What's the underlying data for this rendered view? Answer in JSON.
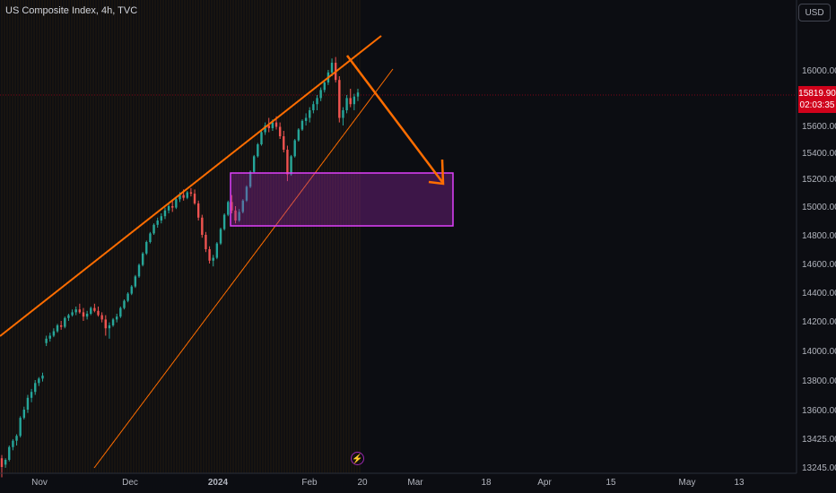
{
  "chart_data": {
    "type": "candlestick",
    "title": "US Composite Index, 4h, TVC",
    "currency": "USD",
    "last_price": "15819.90",
    "countdown": "02:03:35",
    "y_ticks": [
      "16000.00",
      "15800.00",
      "15600.00",
      "15400.00",
      "15200.00",
      "15000.00",
      "14800.00",
      "14600.00",
      "14400.00",
      "14200.00",
      "14000.00",
      "13800.00",
      "13600.00",
      "13425.00",
      "13245.00"
    ],
    "x_ticks": [
      "Nov",
      "Dec",
      "2024",
      "Feb",
      "20",
      "Mar",
      "18",
      "Apr",
      "15",
      "May",
      "13"
    ],
    "ohlc": [
      [
        13300,
        13320,
        13180,
        13245
      ],
      [
        13260,
        13300,
        13240,
        13290
      ],
      [
        13290,
        13380,
        13280,
        13370
      ],
      [
        13370,
        13420,
        13350,
        13410
      ],
      [
        13410,
        13450,
        13380,
        13440
      ],
      [
        13440,
        13560,
        13430,
        13550
      ],
      [
        13550,
        13620,
        13540,
        13600
      ],
      [
        13600,
        13700,
        13580,
        13680
      ],
      [
        13680,
        13740,
        13650,
        13720
      ],
      [
        13720,
        13800,
        13700,
        13780
      ],
      [
        13780,
        13820,
        13760,
        13810
      ],
      [
        13810,
        13850,
        13790,
        13830
      ],
      [
        14050,
        14100,
        14030,
        14080
      ],
      [
        14080,
        14120,
        14060,
        14100
      ],
      [
        14100,
        14150,
        14090,
        14130
      ],
      [
        14130,
        14180,
        14120,
        14170
      ],
      [
        14170,
        14200,
        14140,
        14160
      ],
      [
        14160,
        14230,
        14150,
        14220
      ],
      [
        14220,
        14250,
        14200,
        14240
      ],
      [
        14240,
        14280,
        14230,
        14260
      ],
      [
        14260,
        14300,
        14240,
        14280
      ],
      [
        14280,
        14320,
        14250,
        14260
      ],
      [
        14260,
        14290,
        14200,
        14230
      ],
      [
        14230,
        14270,
        14210,
        14250
      ],
      [
        14250,
        14300,
        14240,
        14290
      ],
      [
        14290,
        14320,
        14260,
        14270
      ],
      [
        14270,
        14300,
        14230,
        14240
      ],
      [
        14240,
        14260,
        14190,
        14210
      ],
      [
        14210,
        14240,
        14100,
        14150
      ],
      [
        14150,
        14190,
        14080,
        14170
      ],
      [
        14170,
        14220,
        14160,
        14210
      ],
      [
        14210,
        14250,
        14190,
        14230
      ],
      [
        14230,
        14300,
        14220,
        14290
      ],
      [
        14290,
        14350,
        14280,
        14340
      ],
      [
        14340,
        14400,
        14330,
        14390
      ],
      [
        14390,
        14450,
        14380,
        14440
      ],
      [
        14440,
        14520,
        14430,
        14510
      ],
      [
        14510,
        14600,
        14500,
        14590
      ],
      [
        14590,
        14680,
        14580,
        14670
      ],
      [
        14670,
        14760,
        14660,
        14750
      ],
      [
        14750,
        14820,
        14740,
        14810
      ],
      [
        14810,
        14880,
        14800,
        14870
      ],
      [
        14870,
        14920,
        14850,
        14900
      ],
      [
        14900,
        14950,
        14880,
        14930
      ],
      [
        14930,
        14990,
        14910,
        14970
      ],
      [
        14970,
        15020,
        14950,
        15000
      ],
      [
        15000,
        15040,
        14960,
        14990
      ],
      [
        14990,
        15060,
        14980,
        15050
      ],
      [
        15050,
        15100,
        15030,
        15080
      ],
      [
        15080,
        15120,
        15040,
        15060
      ],
      [
        15060,
        15110,
        15050,
        15100
      ],
      [
        15100,
        15130,
        15070,
        15090
      ],
      [
        15090,
        15120,
        15010,
        15020
      ],
      [
        15020,
        15040,
        14900,
        14920
      ],
      [
        14920,
        14940,
        14780,
        14800
      ],
      [
        14800,
        14820,
        14680,
        14700
      ],
      [
        14700,
        14720,
        14600,
        14620
      ],
      [
        14620,
        14660,
        14580,
        14640
      ],
      [
        14640,
        14750,
        14630,
        14740
      ],
      [
        14740,
        14850,
        14730,
        14840
      ],
      [
        14840,
        14950,
        14830,
        14940
      ],
      [
        14940,
        15040,
        14930,
        15030
      ],
      [
        15030,
        15080,
        14950,
        14970
      ],
      [
        14970,
        15000,
        14880,
        14900
      ],
      [
        14900,
        14980,
        14890,
        14960
      ],
      [
        14960,
        15050,
        14950,
        15040
      ],
      [
        15040,
        15150,
        15030,
        15140
      ],
      [
        15140,
        15260,
        15130,
        15250
      ],
      [
        15250,
        15380,
        15240,
        15370
      ],
      [
        15370,
        15470,
        15360,
        15460
      ],
      [
        15460,
        15560,
        15450,
        15550
      ],
      [
        15550,
        15620,
        15530,
        15600
      ],
      [
        15600,
        15650,
        15550,
        15580
      ],
      [
        15580,
        15640,
        15560,
        15620
      ],
      [
        15620,
        15660,
        15570,
        15590
      ],
      [
        15590,
        15620,
        15500,
        15520
      ],
      [
        15520,
        15560,
        15400,
        15420
      ],
      [
        15420,
        15450,
        15180,
        15230
      ],
      [
        15230,
        15380,
        15220,
        15370
      ],
      [
        15370,
        15500,
        15360,
        15490
      ],
      [
        15490,
        15580,
        15480,
        15570
      ],
      [
        15570,
        15640,
        15560,
        15630
      ],
      [
        15630,
        15680,
        15600,
        15650
      ],
      [
        15650,
        15720,
        15620,
        15700
      ],
      [
        15700,
        15760,
        15680,
        15740
      ],
      [
        15740,
        15800,
        15700,
        15780
      ],
      [
        15780,
        15860,
        15760,
        15840
      ],
      [
        15840,
        15920,
        15820,
        15900
      ],
      [
        15900,
        16000,
        15880,
        15980
      ],
      [
        15980,
        16080,
        15950,
        16050
      ],
      [
        16050,
        16090,
        15900,
        15920
      ],
      [
        15920,
        15950,
        15620,
        15650
      ],
      [
        15650,
        15720,
        15600,
        15700
      ],
      [
        15700,
        15800,
        15680,
        15780
      ],
      [
        15780,
        15850,
        15720,
        15740
      ],
      [
        15740,
        15810,
        15700,
        15790
      ],
      [
        15790,
        15850,
        15760,
        15819.9
      ]
    ]
  }
}
